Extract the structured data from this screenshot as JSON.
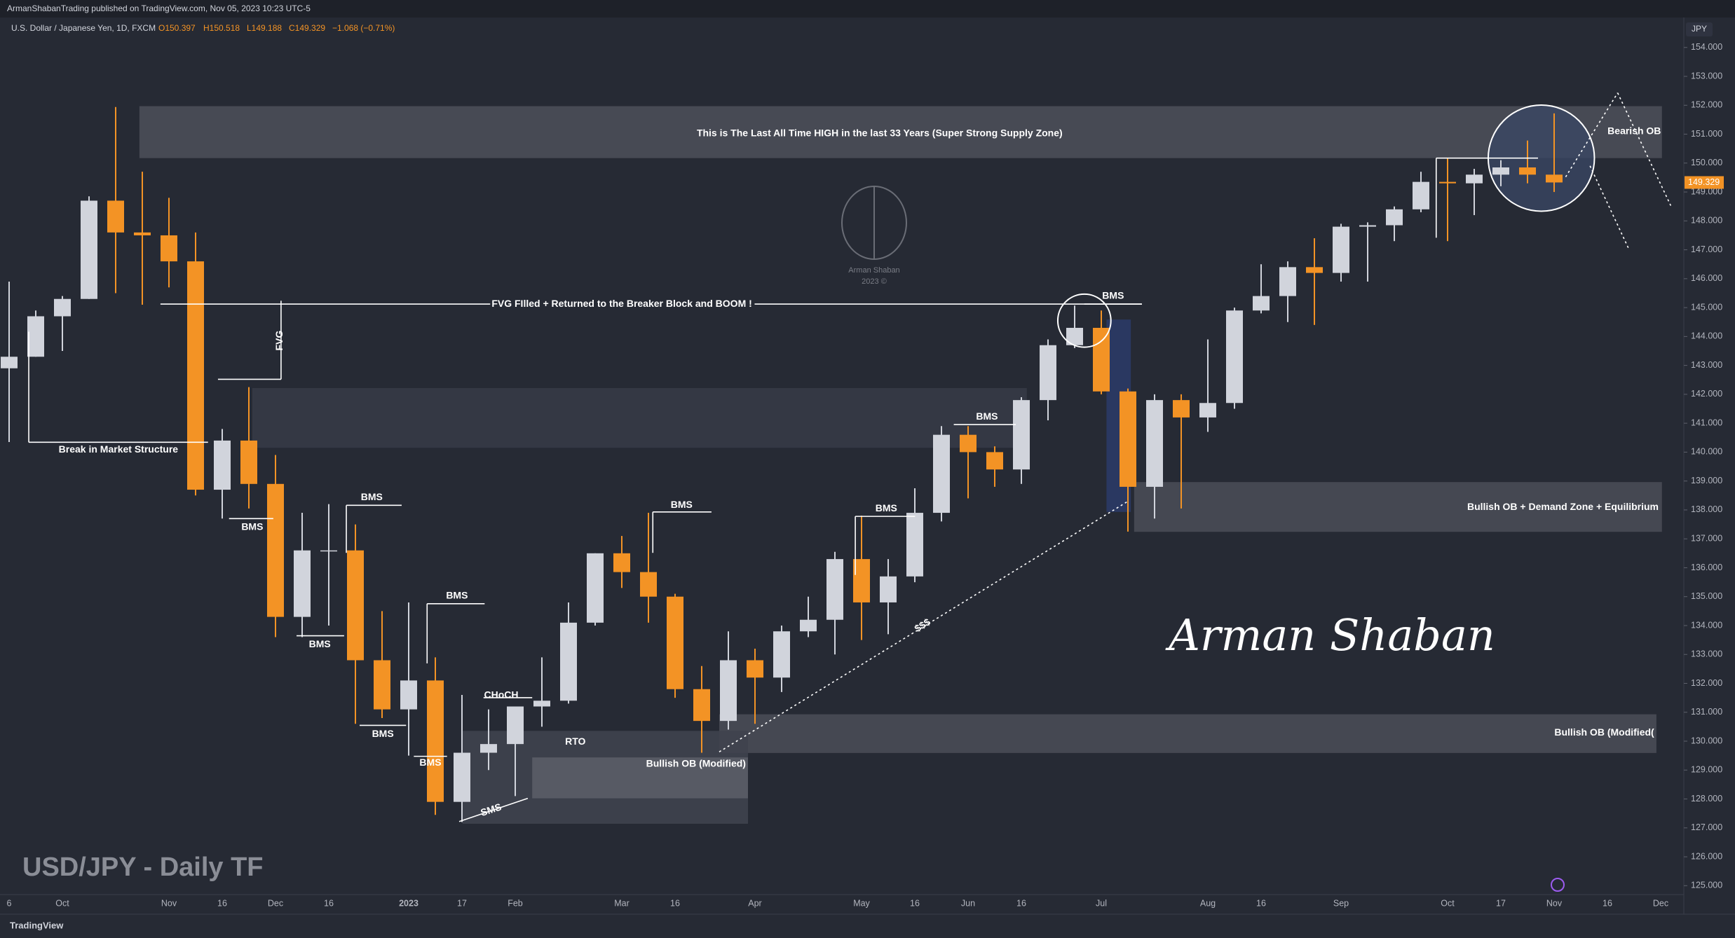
{
  "header": {
    "publisher": "ArmanShabanTrading published on TradingView.com, Nov 05, 2023 10:23 UTC-5",
    "symbol": "U.S. Dollar / Japanese Yen, 1D, FXCM",
    "open": "O150.397",
    "high": "H150.518",
    "low": "L149.188",
    "close": "C149.329",
    "change": "−1.068 (−0.71%)"
  },
  "branding": {
    "logo_name": "Arman Shaban",
    "logo_year": "2023 ©",
    "signature": "Arman Shaban",
    "watermark": "USD/JPY - Daily TF",
    "footer": "TradingView"
  },
  "chart_data": {
    "type": "candlestick",
    "currency": "JPY",
    "up_color": "#d1d4dc",
    "down_color": "#f39325",
    "grid": false,
    "categories": [
      "6",
      null,
      "Oct",
      null,
      null,
      null,
      "Nov",
      null,
      "16",
      null,
      "Dec",
      null,
      "16",
      null,
      null,
      "2023",
      null,
      "17",
      null,
      "Feb",
      null,
      null,
      null,
      "Mar",
      null,
      "16",
      null,
      null,
      "Apr",
      null,
      null,
      null,
      "May",
      null,
      "16",
      null,
      "Jun",
      null,
      "16",
      null,
      null,
      "Jul",
      null,
      null,
      null,
      "Aug",
      null,
      "16",
      null,
      null,
      "Sep",
      null,
      null,
      null,
      "Oct",
      null,
      "17",
      null,
      "Nov",
      null,
      "16",
      null,
      "Dec",
      null
    ],
    "open": [
      142.9,
      143.3,
      144.7,
      145.3,
      148.7,
      147.6,
      147.5,
      146.6,
      138.7,
      140.4,
      138.9,
      134.3,
      136.6,
      136.6,
      132.8,
      131.1,
      132.1,
      127.9,
      129.6,
      129.9,
      131.2,
      131.4,
      134.1,
      136.5,
      135.85,
      135.0,
      131.8,
      130.7,
      132.8,
      132.2,
      133.8,
      134.2,
      136.3,
      134.8,
      135.7,
      137.9,
      140.6,
      140.0,
      139.4,
      141.8,
      143.7,
      144.3,
      142.1,
      138.8,
      141.8,
      141.2,
      141.7,
      144.9,
      145.4,
      146.4,
      146.2,
      147.8,
      147.85,
      148.4,
      149.35,
      149.3,
      149.6,
      149.85,
      149.6,
      null,
      null,
      null,
      null,
      null
    ],
    "high": [
      145.9,
      144.9,
      145.4,
      148.85,
      151.94,
      149.7,
      148.8,
      147.6,
      140.8,
      142.25,
      139.9,
      137.9,
      138.2,
      137.5,
      134.5,
      134.8,
      132.9,
      131.6,
      131.1,
      131.2,
      132.9,
      134.8,
      136.5,
      137.1,
      137.9,
      135.1,
      132.6,
      133.8,
      133.2,
      134.0,
      135.0,
      136.55,
      137.8,
      136.3,
      138.75,
      140.9,
      140.9,
      140.2,
      141.9,
      143.9,
      145.07,
      144.9,
      142.2,
      142.0,
      142.0,
      143.9,
      145.0,
      146.5,
      146.6,
      147.4,
      147.9,
      147.95,
      148.5,
      149.7,
      150.16,
      149.8,
      150.1,
      150.78,
      151.72,
      null,
      null,
      null,
      null,
      null
    ],
    "low": [
      140.35,
      143.3,
      143.5,
      145.3,
      145.5,
      145.1,
      145.7,
      138.5,
      137.7,
      138.05,
      133.6,
      133.6,
      134.0,
      130.6,
      130.8,
      129.5,
      127.45,
      127.2,
      129.0,
      128.1,
      130.5,
      131.3,
      134.0,
      135.3,
      134.1,
      131.5,
      129.6,
      130.4,
      130.6,
      131.7,
      133.6,
      133.0,
      133.5,
      133.7,
      135.5,
      137.6,
      138.4,
      138.8,
      138.9,
      141.1,
      143.6,
      142.0,
      137.25,
      137.7,
      138.05,
      140.7,
      141.5,
      144.8,
      144.5,
      144.4,
      145.9,
      145.9,
      147.3,
      148.3,
      147.3,
      148.2,
      149.2,
      149.3,
      149.0,
      null,
      null,
      null,
      null,
      null
    ],
    "close": [
      143.3,
      144.7,
      145.3,
      148.7,
      147.6,
      147.5,
      146.6,
      138.7,
      140.4,
      138.9,
      134.3,
      136.6,
      136.6,
      132.8,
      131.1,
      132.1,
      127.9,
      129.6,
      129.9,
      131.2,
      131.4,
      134.1,
      136.5,
      135.85,
      135.0,
      131.8,
      130.7,
      132.8,
      132.2,
      133.8,
      134.2,
      136.3,
      134.8,
      135.7,
      137.9,
      140.6,
      140.0,
      139.4,
      141.8,
      143.7,
      144.3,
      142.1,
      138.8,
      141.8,
      141.2,
      141.7,
      144.9,
      145.4,
      146.4,
      146.2,
      147.8,
      147.85,
      148.4,
      149.35,
      149.3,
      149.6,
      149.85,
      149.6,
      149.33,
      null,
      null,
      null,
      null,
      null
    ],
    "last_price": 149.329,
    "last_price_color": "#f39325",
    "ylim": [
      124.7,
      155.0
    ],
    "yticks": [
      {
        "value": 125,
        "label": "125.000"
      },
      {
        "value": 126,
        "label": "126.000"
      },
      {
        "value": 127,
        "label": "127.000"
      },
      {
        "value": 128,
        "label": "128.000"
      },
      {
        "value": 129,
        "label": "129.000"
      },
      {
        "value": 130,
        "label": "130.000"
      },
      {
        "value": 131,
        "label": "131.000"
      },
      {
        "value": 132,
        "label": "132.000"
      },
      {
        "value": 133,
        "label": "133.000"
      },
      {
        "value": 134,
        "label": "134.000"
      },
      {
        "value": 135,
        "label": "135.000"
      },
      {
        "value": 136,
        "label": "136.000"
      },
      {
        "value": 137,
        "label": "137.000"
      },
      {
        "value": 138,
        "label": "138.000"
      },
      {
        "value": 139,
        "label": "139.000"
      },
      {
        "value": 140,
        "label": "140.000"
      },
      {
        "value": 141,
        "label": "141.000"
      },
      {
        "value": 142,
        "label": "142.000"
      },
      {
        "value": 143,
        "label": "143.000"
      },
      {
        "value": 144,
        "label": "144.000"
      },
      {
        "value": 145,
        "label": "145.000"
      },
      {
        "value": 146,
        "label": "146.000"
      },
      {
        "value": 147,
        "label": "147.000"
      },
      {
        "value": 148,
        "label": "148.000"
      },
      {
        "value": 149,
        "label": "149.000"
      },
      {
        "value": 150,
        "label": "150.000"
      },
      {
        "value": 151,
        "label": "151.000"
      },
      {
        "value": 152,
        "label": "152.000"
      },
      {
        "value": 153,
        "label": "153.000"
      },
      {
        "value": 154,
        "label": "154.000"
      }
    ],
    "annotations": [
      "This is The Last All Time HIGH in the last 33 Years (Super Strong Supply Zone)",
      "Bearish OB",
      "FVG FIlled + Returned to the Breaker Block and BOOM !",
      "FVG",
      "Break in Market Structure",
      "BMS",
      "BMS",
      "BMS",
      "BMS",
      "BMS",
      "BMS",
      "BMS",
      "BMS",
      "BMS",
      "BMS",
      "CHoCH",
      "RTO",
      "SMS",
      "Bullish OB (Modified)",
      "$$$",
      "Bullish OB + Demand Zone + Equilibrium",
      "Bullish OB (Modified("
    ]
  }
}
